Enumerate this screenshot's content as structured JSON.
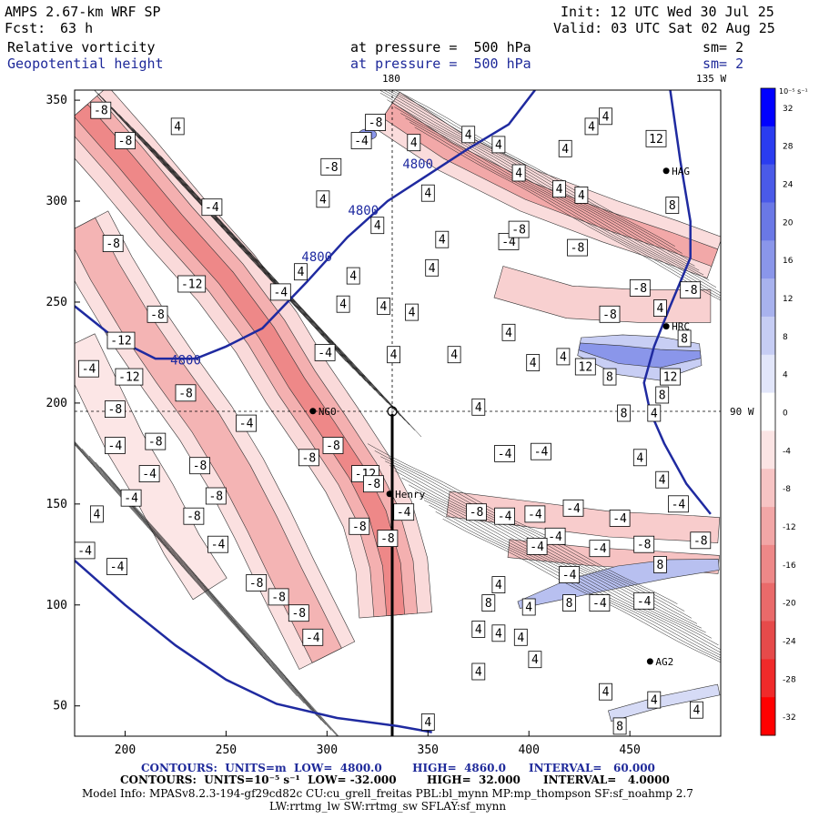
{
  "header": {
    "model": "AMPS 2.67-km WRF SP",
    "init": "Init: 12 UTC Wed 30 Jul 25",
    "fcst_label": "Fcst:",
    "fcst_value": "63 h",
    "valid": "Valid: 03 UTC Sat 02 Aug 25",
    "field1_name": "Relative vorticity",
    "field1_level": "at pressure =  500 hPa",
    "field1_sm": "sm= 2",
    "field2_name": "Geopotential height",
    "field2_level": "at pressure =  500 hPa",
    "field2_sm": "sm= 2",
    "lon_top_180": "180",
    "lon_top_135w": "135 W",
    "lon_right_90w": "90 W"
  },
  "colorbar": {
    "units": "10⁻⁵ s⁻¹",
    "ticks": [
      "32",
      "28",
      "24",
      "20",
      "16",
      "12",
      "8",
      "4",
      "0",
      "-4",
      "-8",
      "-12",
      "-16",
      "-20",
      "-24",
      "-28",
      "-32"
    ],
    "colors": [
      "#0000ff",
      "#2a3cf0",
      "#4a5ae8",
      "#6a78e6",
      "#8a96ea",
      "#a8b2ee",
      "#c6cdf4",
      "#e2e6fa",
      "#ffffff",
      "#fbe4e4",
      "#f7c4c4",
      "#f2a6a6",
      "#ee8888",
      "#ea6a6a",
      "#e64a4a",
      "#f02a2a",
      "#ff0000"
    ]
  },
  "stations": [
    {
      "name": "NGO"
    },
    {
      "name": "Henry"
    },
    {
      "name": "AG2"
    },
    {
      "name": "HAG"
    },
    {
      "name": "HRC"
    }
  ],
  "footer": {
    "line1": "CONTOURS:  UNITS=m  LOW=  4800.0        HIGH=  4860.0      INTERVAL=   60.000",
    "line2": "CONTOURS:  UNITS=10⁻⁵ s⁻¹  LOW= -32.000        HIGH=  32.000      INTERVAL=   4.0000",
    "line3": "Model Info: MPASv8.2.3-194-gf29cd82c CU:cu_grell_freitas PBL:bl_mynn MP:mp_thompson SF:sf_noahmp 2.7",
    "line4": "LW:rrtmg_lw SW:rrtmg_sw SFLAY:sf_mynn"
  },
  "chart_data": {
    "type": "heatmap",
    "title": "Relative vorticity / Geopotential height at 500 hPa",
    "xlim": [
      175,
      495
    ],
    "ylim": [
      35,
      355
    ],
    "x_ticks": [
      200,
      250,
      300,
      350,
      400,
      450
    ],
    "y_ticks": [
      50,
      100,
      150,
      200,
      250,
      300,
      350
    ],
    "height_contour_labels": [
      "4800",
      "4800",
      "4800",
      "4800"
    ],
    "vorticity_labels": [
      {
        "x": 188,
        "y": 345,
        "v": "-8"
      },
      {
        "x": 200,
        "y": 330,
        "v": "-8"
      },
      {
        "x": 226,
        "y": 337,
        "v": "4"
      },
      {
        "x": 243,
        "y": 297,
        "v": "-4"
      },
      {
        "x": 194,
        "y": 279,
        "v": "-8"
      },
      {
        "x": 233,
        "y": 259,
        "v": "-12"
      },
      {
        "x": 216,
        "y": 244,
        "v": "-8"
      },
      {
        "x": 198,
        "y": 231,
        "v": "-12"
      },
      {
        "x": 202,
        "y": 213,
        "v": "-12"
      },
      {
        "x": 182,
        "y": 217,
        "v": "-4"
      },
      {
        "x": 230,
        "y": 205,
        "v": "-8"
      },
      {
        "x": 195,
        "y": 197,
        "v": "-8"
      },
      {
        "x": 260,
        "y": 190,
        "v": "-4"
      },
      {
        "x": 195,
        "y": 179,
        "v": "-4"
      },
      {
        "x": 215,
        "y": 181,
        "v": "-8"
      },
      {
        "x": 212,
        "y": 165,
        "v": "-4"
      },
      {
        "x": 237,
        "y": 169,
        "v": "-8"
      },
      {
        "x": 245,
        "y": 154,
        "v": "-8"
      },
      {
        "x": 203,
        "y": 153,
        "v": "-4"
      },
      {
        "x": 186,
        "y": 145,
        "v": "4"
      },
      {
        "x": 234,
        "y": 144,
        "v": "-8"
      },
      {
        "x": 180,
        "y": 127,
        "v": "-4"
      },
      {
        "x": 246,
        "y": 130,
        "v": "-4"
      },
      {
        "x": 196,
        "y": 119,
        "v": "-4"
      },
      {
        "x": 265,
        "y": 111,
        "v": "-8"
      },
      {
        "x": 276,
        "y": 104,
        "v": "-8"
      },
      {
        "x": 286,
        "y": 96,
        "v": "-8"
      },
      {
        "x": 293,
        "y": 84,
        "v": "-4"
      },
      {
        "x": 291,
        "y": 173,
        "v": "-8"
      },
      {
        "x": 303,
        "y": 179,
        "v": "-8"
      },
      {
        "x": 319,
        "y": 165,
        "v": "-12"
      },
      {
        "x": 316,
        "y": 139,
        "v": "-8"
      },
      {
        "x": 330,
        "y": 133,
        "v": "-8"
      },
      {
        "x": 323,
        "y": 160,
        "v": "-8"
      },
      {
        "x": 338,
        "y": 146,
        "v": "-4"
      },
      {
        "x": 299,
        "y": 225,
        "v": "-4"
      },
      {
        "x": 277,
        "y": 255,
        "v": "-4"
      },
      {
        "x": 287,
        "y": 265,
        "v": "4"
      },
      {
        "x": 298,
        "y": 301,
        "v": "4"
      },
      {
        "x": 302,
        "y": 317,
        "v": "-8"
      },
      {
        "x": 308,
        "y": 249,
        "v": "4"
      },
      {
        "x": 313,
        "y": 263,
        "v": "4"
      },
      {
        "x": 325,
        "y": 288,
        "v": "4"
      },
      {
        "x": 317,
        "y": 330,
        "v": "-4"
      },
      {
        "x": 342,
        "y": 245,
        "v": "4"
      },
      {
        "x": 328,
        "y": 248,
        "v": "4"
      },
      {
        "x": 324,
        "y": 339,
        "v": "-8"
      },
      {
        "x": 333,
        "y": 224,
        "v": "4"
      },
      {
        "x": 390,
        "y": 280,
        "v": "-4"
      },
      {
        "x": 395,
        "y": 286,
        "v": "-8"
      },
      {
        "x": 375,
        "y": 198,
        "v": "4"
      },
      {
        "x": 363,
        "y": 224,
        "v": "4"
      },
      {
        "x": 390,
        "y": 235,
        "v": "4"
      },
      {
        "x": 388,
        "y": 175,
        "v": "-4"
      },
      {
        "x": 406,
        "y": 176,
        "v": "-4"
      },
      {
        "x": 374,
        "y": 146,
        "v": "-8"
      },
      {
        "x": 388,
        "y": 144,
        "v": "-4"
      },
      {
        "x": 403,
        "y": 145,
        "v": "-4"
      },
      {
        "x": 422,
        "y": 148,
        "v": "-4"
      },
      {
        "x": 445,
        "y": 143,
        "v": "-4"
      },
      {
        "x": 474,
        "y": 150,
        "v": "-4"
      },
      {
        "x": 485,
        "y": 132,
        "v": "-8"
      },
      {
        "x": 413,
        "y": 134,
        "v": "-4"
      },
      {
        "x": 404,
        "y": 129,
        "v": "-4"
      },
      {
        "x": 435,
        "y": 128,
        "v": "-4"
      },
      {
        "x": 457,
        "y": 130,
        "v": "-8"
      },
      {
        "x": 420,
        "y": 115,
        "v": "-4"
      },
      {
        "x": 435,
        "y": 101,
        "v": "-4"
      },
      {
        "x": 457,
        "y": 102,
        "v": "-4"
      },
      {
        "x": 420,
        "y": 101,
        "v": "8"
      },
      {
        "x": 385,
        "y": 110,
        "v": "4"
      },
      {
        "x": 400,
        "y": 99,
        "v": "4"
      },
      {
        "x": 380,
        "y": 101,
        "v": "8"
      },
      {
        "x": 465,
        "y": 120,
        "v": "8"
      },
      {
        "x": 396,
        "y": 84,
        "v": "4"
      },
      {
        "x": 385,
        "y": 86,
        "v": "4"
      },
      {
        "x": 403,
        "y": 73,
        "v": "4"
      },
      {
        "x": 375,
        "y": 67,
        "v": "4"
      },
      {
        "x": 438,
        "y": 57,
        "v": "4"
      },
      {
        "x": 462,
        "y": 53,
        "v": "4"
      },
      {
        "x": 483,
        "y": 48,
        "v": "4"
      },
      {
        "x": 445,
        "y": 40,
        "v": "8"
      },
      {
        "x": 350,
        "y": 42,
        "v": "4"
      },
      {
        "x": 375,
        "y": 88,
        "v": "4"
      },
      {
        "x": 466,
        "y": 162,
        "v": "4"
      },
      {
        "x": 455,
        "y": 173,
        "v": "4"
      },
      {
        "x": 440,
        "y": 244,
        "v": "-8"
      },
      {
        "x": 455,
        "y": 257,
        "v": "-8"
      },
      {
        "x": 465,
        "y": 247,
        "v": "4"
      },
      {
        "x": 480,
        "y": 256,
        "v": "-8"
      },
      {
        "x": 477,
        "y": 232,
        "v": "8"
      },
      {
        "x": 470,
        "y": 213,
        "v": "12"
      },
      {
        "x": 466,
        "y": 204,
        "v": "8"
      },
      {
        "x": 440,
        "y": 213,
        "v": "8"
      },
      {
        "x": 428,
        "y": 218,
        "v": "12"
      },
      {
        "x": 417,
        "y": 223,
        "v": "4"
      },
      {
        "x": 402,
        "y": 220,
        "v": "4"
      },
      {
        "x": 447,
        "y": 195,
        "v": "8"
      },
      {
        "x": 462,
        "y": 195,
        "v": "4"
      },
      {
        "x": 463,
        "y": 331,
        "v": "12"
      },
      {
        "x": 438,
        "y": 342,
        "v": "4"
      },
      {
        "x": 426,
        "y": 303,
        "v": "4"
      },
      {
        "x": 418,
        "y": 326,
        "v": "4"
      },
      {
        "x": 431,
        "y": 337,
        "v": "4"
      },
      {
        "x": 471,
        "y": 298,
        "v": "8"
      },
      {
        "x": 424,
        "y": 277,
        "v": "-8"
      },
      {
        "x": 395,
        "y": 314,
        "v": "4"
      },
      {
        "x": 385,
        "y": 328,
        "v": "4"
      },
      {
        "x": 370,
        "y": 333,
        "v": "4"
      },
      {
        "x": 343,
        "y": 329,
        "v": "4"
      },
      {
        "x": 350,
        "y": 304,
        "v": "4"
      },
      {
        "x": 357,
        "y": 281,
        "v": "4"
      },
      {
        "x": 352,
        "y": 267,
        "v": "4"
      },
      {
        "x": 415,
        "y": 306,
        "v": "4"
      }
    ]
  }
}
